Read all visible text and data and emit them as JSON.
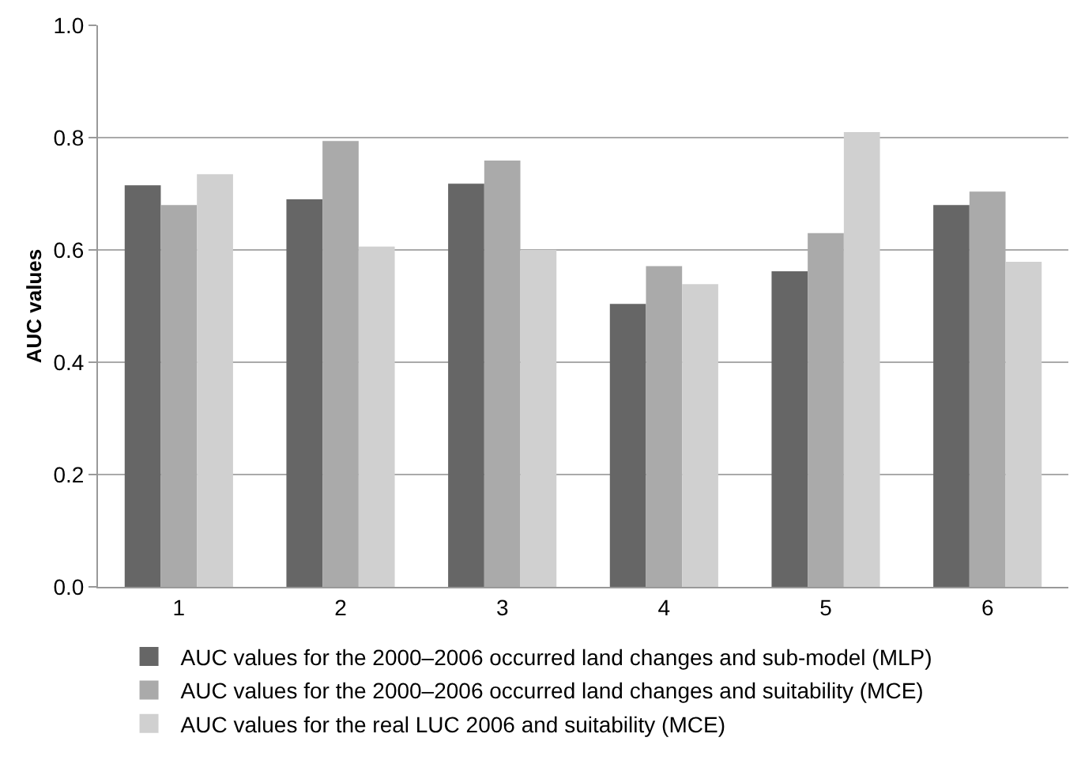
{
  "chart_data": {
    "type": "bar",
    "ylabel": "AUC values",
    "categories": [
      "1",
      "2",
      "3",
      "4",
      "5",
      "6"
    ],
    "series": [
      {
        "name": "AUC values for the 2000–2006 occurred land changes and sub-model (MLP)",
        "color": "#666666",
        "values": [
          0.715,
          0.69,
          0.718,
          0.504,
          0.562,
          0.68
        ]
      },
      {
        "name": "AUC values for the 2000–2006 occurred land changes and suitability (MCE)",
        "color": "#aaaaaa",
        "values": [
          0.68,
          0.794,
          0.759,
          0.571,
          0.63,
          0.704
        ]
      },
      {
        "name": "AUC values for the real LUC 2006 and suitability (MCE)",
        "color": "#d0d0d0",
        "values": [
          0.735,
          0.606,
          0.6,
          0.539,
          0.81,
          0.579
        ]
      }
    ],
    "ylim": [
      0,
      1
    ],
    "yticks": [
      {
        "value": 0,
        "label": "0.0"
      },
      0.2,
      0.4,
      0.6,
      0.8,
      {
        "value": 1,
        "label": "1.0"
      }
    ],
    "grid": "y",
    "legend": "bottom"
  }
}
